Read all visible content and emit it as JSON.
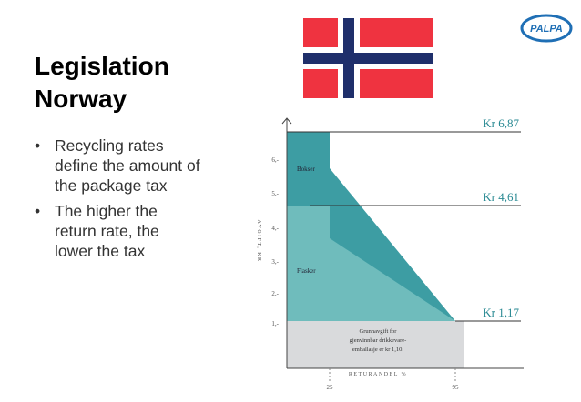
{
  "header": {
    "title_lines": [
      "Legislation",
      "Norway"
    ],
    "logo": "PALPA"
  },
  "bullets": [
    "Recycling rates define the amount of the package tax",
    "The higher the return rate, the lower the tax"
  ],
  "figure": {
    "y_axis_label": "AVGIFT, KR",
    "x_axis_label": "RETURANDEL %",
    "y_ticks": [
      "6,-",
      "5,-",
      "4,-",
      "3,-",
      "2,-",
      "1,-"
    ],
    "x_ticks": [
      "25",
      "95"
    ],
    "levels": [
      "Kr 6,87",
      "Kr 4,61",
      "Kr 1,17"
    ],
    "regions": [
      "Bokser",
      "Flasker"
    ],
    "base_note": [
      "Grunnavgift for",
      "gjenvinnbar drikkevare-",
      "emballasje er kr 1,10."
    ]
  }
}
